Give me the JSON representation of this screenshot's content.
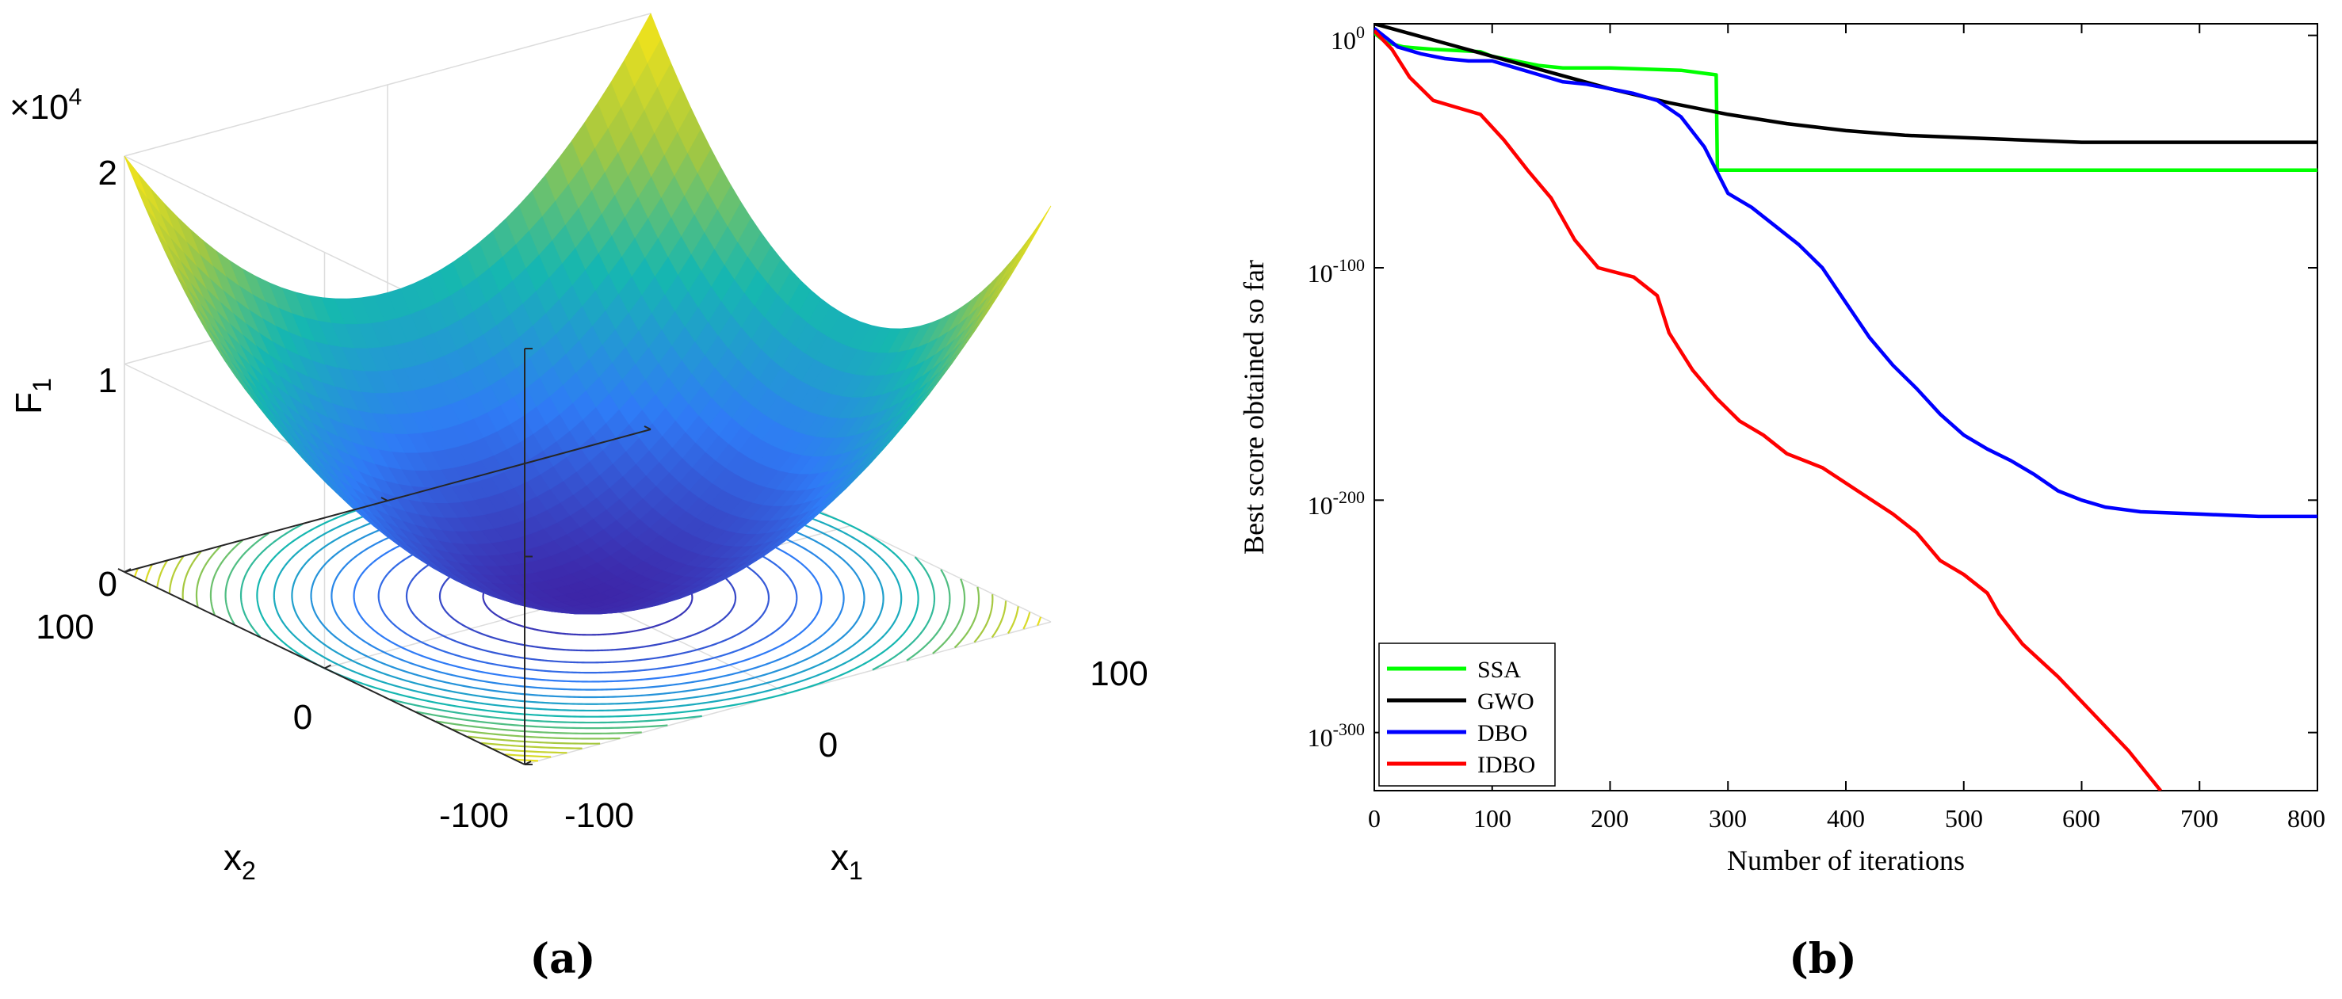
{
  "panel_a": {
    "caption": "(a)",
    "chart_data": {
      "type": "surface",
      "title": "",
      "zlabel": "F",
      "zlabel_sub": "1",
      "z_exponent_prefix": "×10",
      "z_exponent": "4",
      "z_ticks": [
        "0",
        "1",
        "2"
      ],
      "x1_label": "x",
      "x1_label_sub": "1",
      "x2_label": "x",
      "x2_label_sub": "2",
      "x1_ticks": [
        "-100",
        "0",
        "100"
      ],
      "x2_ticks": [
        "100",
        "0",
        "-100"
      ],
      "x_range": [
        -100,
        100
      ],
      "y_range": [
        -100,
        100
      ],
      "z_range": [
        0,
        20000
      ],
      "function": "F1(x1,x2) = x1^2 + x2^2",
      "contour_levels": [
        1000,
        2000,
        3000,
        4000,
        5000,
        6000,
        7000,
        8000,
        9000,
        10000,
        11000,
        12000,
        13000,
        14000,
        15000,
        16000,
        17000,
        18000,
        19000
      ],
      "colors": {
        "low": "#3d26a8",
        "mid": "#16b7b0",
        "high": "#f9e617"
      }
    }
  },
  "panel_b": {
    "caption": "(b)",
    "chart_data": {
      "type": "line",
      "xlabel": "Number of iterations",
      "ylabel": "Best score obtained so far",
      "yscale": "log10",
      "xlim": [
        0,
        800
      ],
      "ylim_log10": [
        -325,
        5
      ],
      "x_ticks": [
        "0",
        "100",
        "200",
        "300",
        "400",
        "500",
        "600",
        "700",
        "800"
      ],
      "y_ticks": [
        {
          "base": "10",
          "exp": "0",
          "log": 0
        },
        {
          "base": "10",
          "exp": "-100",
          "log": -100
        },
        {
          "base": "10",
          "exp": "-200",
          "log": -200
        },
        {
          "base": "10",
          "exp": "-300",
          "log": -300
        }
      ],
      "y_tick_top_label": "1",
      "legend_position": "bottom-left",
      "series": [
        {
          "name": "SSA",
          "color": "#00ff00",
          "points": [
            [
              0,
              1
            ],
            [
              10,
              -3
            ],
            [
              25,
              -5
            ],
            [
              50,
              -6
            ],
            [
              90,
              -7
            ],
            [
              100,
              -9
            ],
            [
              120,
              -11
            ],
            [
              140,
              -13
            ],
            [
              160,
              -14
            ],
            [
              200,
              -14
            ],
            [
              260,
              -15
            ],
            [
              290,
              -17
            ],
            [
              291,
              -58
            ],
            [
              800,
              -58
            ]
          ]
        },
        {
          "name": "GWO",
          "color": "#000000",
          "points": [
            [
              0,
              5
            ],
            [
              50,
              -2
            ],
            [
              100,
              -9
            ],
            [
              150,
              -16
            ],
            [
              200,
              -23
            ],
            [
              250,
              -29
            ],
            [
              300,
              -34
            ],
            [
              350,
              -38
            ],
            [
              400,
              -41
            ],
            [
              450,
              -43
            ],
            [
              500,
              -44
            ],
            [
              550,
              -45
            ],
            [
              600,
              -46
            ],
            [
              650,
              -46
            ],
            [
              700,
              -46
            ],
            [
              750,
              -46
            ],
            [
              800,
              -46
            ]
          ]
        },
        {
          "name": "DBO",
          "color": "#0000ff",
          "points": [
            [
              0,
              3
            ],
            [
              20,
              -5
            ],
            [
              40,
              -8
            ],
            [
              60,
              -10
            ],
            [
              80,
              -11
            ],
            [
              100,
              -11
            ],
            [
              120,
              -14
            ],
            [
              140,
              -17
            ],
            [
              160,
              -20
            ],
            [
              180,
              -21
            ],
            [
              200,
              -23
            ],
            [
              220,
              -25
            ],
            [
              240,
              -28
            ],
            [
              260,
              -35
            ],
            [
              280,
              -48
            ],
            [
              290,
              -58
            ],
            [
              300,
              -68
            ],
            [
              320,
              -74
            ],
            [
              340,
              -82
            ],
            [
              360,
              -90
            ],
            [
              380,
              -100
            ],
            [
              400,
              -115
            ],
            [
              420,
              -130
            ],
            [
              440,
              -142
            ],
            [
              460,
              -152
            ],
            [
              480,
              -163
            ],
            [
              500,
              -172
            ],
            [
              520,
              -178
            ],
            [
              540,
              -183
            ],
            [
              560,
              -189
            ],
            [
              580,
              -196
            ],
            [
              600,
              -200
            ],
            [
              620,
              -203
            ],
            [
              650,
              -205
            ],
            [
              700,
              -206
            ],
            [
              750,
              -207
            ],
            [
              800,
              -207
            ]
          ]
        },
        {
          "name": "IDBO",
          "color": "#ff0000",
          "points": [
            [
              0,
              2
            ],
            [
              15,
              -6
            ],
            [
              30,
              -18
            ],
            [
              50,
              -28
            ],
            [
              70,
              -31
            ],
            [
              90,
              -34
            ],
            [
              110,
              -45
            ],
            [
              130,
              -58
            ],
            [
              150,
              -70
            ],
            [
              170,
              -88
            ],
            [
              190,
              -100
            ],
            [
              220,
              -104
            ],
            [
              240,
              -112
            ],
            [
              250,
              -128
            ],
            [
              270,
              -144
            ],
            [
              290,
              -156
            ],
            [
              310,
              -166
            ],
            [
              330,
              -172
            ],
            [
              350,
              -180
            ],
            [
              380,
              -186
            ],
            [
              410,
              -196
            ],
            [
              440,
              -206
            ],
            [
              460,
              -214
            ],
            [
              480,
              -226
            ],
            [
              500,
              -232
            ],
            [
              520,
              -240
            ],
            [
              530,
              -249
            ],
            [
              550,
              -262
            ],
            [
              580,
              -276
            ],
            [
              610,
              -292
            ],
            [
              640,
              -308
            ],
            [
              667,
              -325
            ]
          ]
        }
      ]
    }
  }
}
